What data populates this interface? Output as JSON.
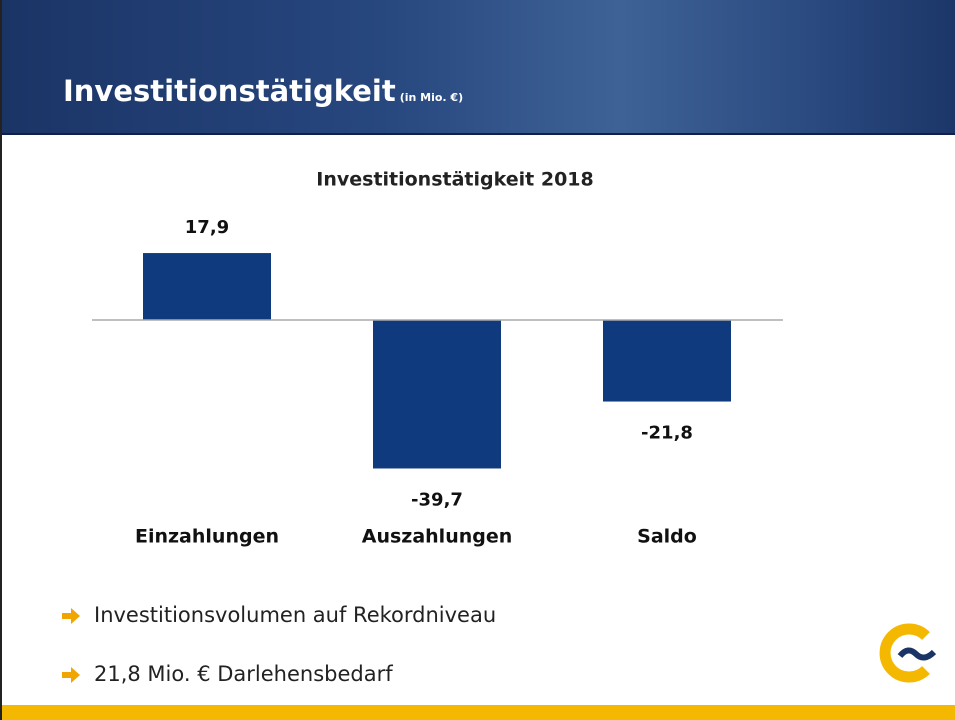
{
  "header": {
    "title": "Investitionstätigkeit",
    "unit": "(in Mio. €)"
  },
  "chart_data": {
    "type": "bar",
    "title": "Investitionstätigkeit 2018",
    "categories": [
      "Einzahlungen",
      "Auszahlungen",
      "Saldo"
    ],
    "values": [
      17.9,
      -39.7,
      -21.8
    ],
    "value_labels": [
      "17,9",
      "-39,7",
      "-21,8"
    ],
    "color": "#0f3a7d"
  },
  "bullets": [
    "Investitionsvolumen auf Rekordniveau",
    "21,8 Mio. € Darlehensbedarf"
  ]
}
